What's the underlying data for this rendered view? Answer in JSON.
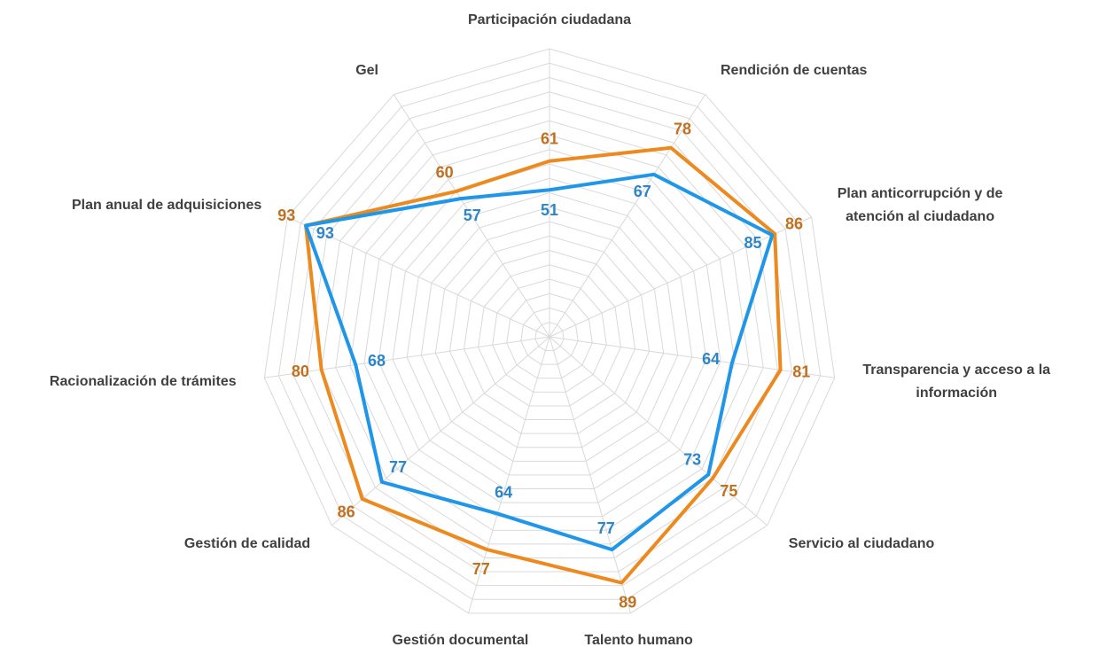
{
  "chart_data": {
    "type": "radar",
    "categories": [
      "Participación ciudadana",
      "Rendición de cuentas",
      "Plan anticorrupción y de\natención al ciudadano",
      "Transparencia y acceso a la\ninformación",
      "Servicio al ciudadano",
      "Talento humano",
      "Gestión documental",
      "Gestión de calidad",
      "Racionalización de trámites",
      "Plan anual de adquisiciones",
      "Gel"
    ],
    "series": [
      {
        "color": "#ed8a1f",
        "label_color": "#c0701e",
        "values": [
          61,
          78,
          86,
          81,
          75,
          89,
          77,
          86,
          80,
          93,
          60
        ]
      },
      {
        "color": "#1f96e8",
        "label_color": "#2e86c8",
        "values": [
          51,
          67,
          85,
          64,
          73,
          77,
          64,
          77,
          68,
          93,
          57
        ]
      }
    ],
    "ylim": [
      0,
      100
    ],
    "yticks": [
      0,
      5,
      10,
      15,
      20,
      25,
      30,
      35,
      40,
      45,
      50,
      55,
      60,
      65,
      70,
      75,
      80,
      85,
      90,
      95,
      100
    ],
    "grid": true
  }
}
